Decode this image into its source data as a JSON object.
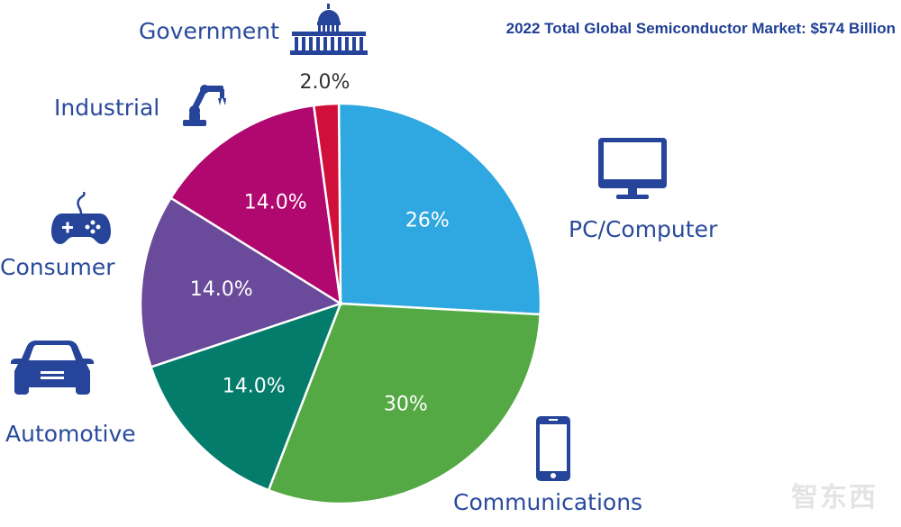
{
  "chart_data": {
    "type": "pie",
    "title": "2022 Total Global Semiconductor Market: $574 Billion",
    "slices": [
      {
        "name": "PC/Computer",
        "value": 26,
        "label": "26%",
        "color": "#2fa7e0"
      },
      {
        "name": "Communications",
        "value": 30,
        "label": "30%",
        "color": "#55a944"
      },
      {
        "name": "Automotive",
        "value": 14,
        "label": "14.0%",
        "color": "#047c6c"
      },
      {
        "name": "Consumer",
        "value": 14,
        "label": "14.0%",
        "color": "#6a4a9a"
      },
      {
        "name": "Industrial",
        "value": 14,
        "label": "14.0%",
        "color": "#b0086e"
      },
      {
        "name": "Government",
        "value": 2,
        "label": "2.0%",
        "color": "#d0103a"
      }
    ]
  },
  "colors": {
    "category_text": "#2a4a9c",
    "icon": "#25449a",
    "title": "#1f3f96"
  },
  "icons": {
    "government": "capitol-building-icon",
    "industrial": "robot-arm-icon",
    "pc": "monitor-icon",
    "consumer": "gamepad-icon",
    "automotive": "car-icon",
    "communications": "smartphone-icon"
  },
  "watermark": "智东西"
}
